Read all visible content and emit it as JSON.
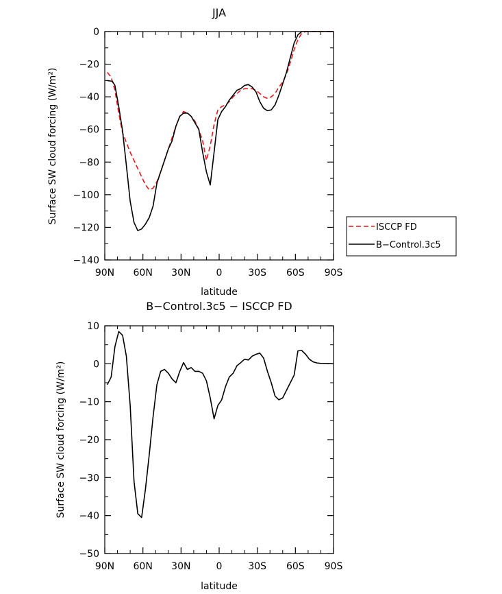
{
  "chart_data": [
    {
      "type": "line",
      "title": "JJA",
      "xlabel": "latitude",
      "ylabel": "Surface SW cloud forcing (W/m²)",
      "xlim": [
        90,
        -90
      ],
      "ylim": [
        -140,
        0
      ],
      "x_ticks": [
        90,
        60,
        30,
        0,
        -30,
        -60,
        -90
      ],
      "x_tick_labels": [
        "90N",
        "60N",
        "30N",
        "0",
        "30S",
        "60S",
        "90S"
      ],
      "y_ticks": [
        0,
        -20,
        -40,
        -60,
        -80,
        -100,
        -120,
        -140
      ],
      "y_tick_labels": [
        "0",
        "−20",
        "−40",
        "−60",
        "−80",
        "−100",
        "−120",
        "−140"
      ],
      "legend": {
        "placement": "right",
        "entries": [
          "ISCCP FD",
          "B−Control.3c5"
        ]
      },
      "series": [
        {
          "name": "ISCCP FD",
          "color": "#e41a1c",
          "dash": "dashed",
          "points": [
            [
              88,
              -25
            ],
            [
              85,
              -28
            ],
            [
              82,
              -36
            ],
            [
              79,
              -50
            ],
            [
              76,
              -62
            ],
            [
              73,
              -68
            ],
            [
              70,
              -74
            ],
            [
              67,
              -79
            ],
            [
              64,
              -84
            ],
            [
              61,
              -89
            ],
            [
              58,
              -94
            ],
            [
              55,
              -97
            ],
            [
              52,
              -96
            ],
            [
              49,
              -92
            ],
            [
              46,
              -86
            ],
            [
              43,
              -79
            ],
            [
              40,
              -72
            ],
            [
              37,
              -65
            ],
            [
              34,
              -58
            ],
            [
              31,
              -52
            ],
            [
              28,
              -49
            ],
            [
              25,
              -50
            ],
            [
              22,
              -52
            ],
            [
              19,
              -55
            ],
            [
              16,
              -60
            ],
            [
              13,
              -67
            ],
            [
              10,
              -79
            ],
            [
              7,
              -70
            ],
            [
              4,
              -57
            ],
            [
              1,
              -48
            ],
            [
              -2,
              -46
            ],
            [
              -5,
              -45
            ],
            [
              -8,
              -43
            ],
            [
              -11,
              -40
            ],
            [
              -14,
              -38
            ],
            [
              -17,
              -36
            ],
            [
              -20,
              -35
            ],
            [
              -23,
              -35
            ],
            [
              -26,
              -35
            ],
            [
              -29,
              -36
            ],
            [
              -32,
              -38
            ],
            [
              -35,
              -40
            ],
            [
              -38,
              -41
            ],
            [
              -41,
              -40
            ],
            [
              -44,
              -38
            ],
            [
              -47,
              -34
            ],
            [
              -50,
              -31
            ],
            [
              -53,
              -26
            ],
            [
              -56,
              -19
            ],
            [
              -59,
              -11
            ],
            [
              -62,
              -5
            ],
            [
              -65,
              -1
            ],
            [
              -68,
              0
            ],
            [
              -75,
              0
            ],
            [
              -90,
              0
            ]
          ]
        },
        {
          "name": "B−Control.3c5",
          "color": "#000000",
          "dash": "solid",
          "points": [
            [
              88,
              -30
            ],
            [
              84,
              -30.5
            ],
            [
              82,
              -33
            ],
            [
              79,
              -46
            ],
            [
              76,
              -61
            ],
            [
              73,
              -82
            ],
            [
              70,
              -104
            ],
            [
              67,
              -117
            ],
            [
              64,
              -122
            ],
            [
              61,
              -121
            ],
            [
              58,
              -118
            ],
            [
              55,
              -114
            ],
            [
              52,
              -107
            ],
            [
              49,
              -93
            ],
            [
              46,
              -86
            ],
            [
              43,
              -79
            ],
            [
              40,
              -72
            ],
            [
              37,
              -67
            ],
            [
              34,
              -58
            ],
            [
              31,
              -52
            ],
            [
              28,
              -50
            ],
            [
              25,
              -50
            ],
            [
              22,
              -52
            ],
            [
              19,
              -56
            ],
            [
              16,
              -60
            ],
            [
              13,
              -74
            ],
            [
              10,
              -86
            ],
            [
              7,
              -94
            ],
            [
              4,
              -74
            ],
            [
              1,
              -54
            ],
            [
              -2,
              -49
            ],
            [
              -5,
              -46
            ],
            [
              -8,
              -42
            ],
            [
              -11,
              -39
            ],
            [
              -14,
              -36
            ],
            [
              -17,
              -35
            ],
            [
              -20,
              -33
            ],
            [
              -23,
              -32.5
            ],
            [
              -26,
              -34
            ],
            [
              -29,
              -37
            ],
            [
              -32,
              -43
            ],
            [
              -35,
              -47
            ],
            [
              -38,
              -48.5
            ],
            [
              -41,
              -48
            ],
            [
              -44,
              -45
            ],
            [
              -47,
              -39
            ],
            [
              -50,
              -32
            ],
            [
              -53,
              -25
            ],
            [
              -56,
              -16
            ],
            [
              -59,
              -7
            ],
            [
              -62,
              -2
            ],
            [
              -65,
              0
            ],
            [
              -68,
              0
            ],
            [
              -75,
              0
            ],
            [
              -90,
              0
            ]
          ]
        }
      ]
    },
    {
      "type": "line",
      "title": "B−Control.3c5 − ISCCP FD",
      "xlabel": "latitude",
      "ylabel": "Surface SW cloud forcing (W/m²)",
      "xlim": [
        90,
        -90
      ],
      "ylim": [
        -50,
        10
      ],
      "x_ticks": [
        90,
        60,
        30,
        0,
        -30,
        -60,
        -90
      ],
      "x_tick_labels": [
        "90N",
        "60N",
        "30N",
        "0",
        "30S",
        "60S",
        "90S"
      ],
      "y_ticks": [
        10,
        0,
        -10,
        -20,
        -30,
        -40,
        -50
      ],
      "y_tick_labels": [
        "10",
        "0",
        "−10",
        "−20",
        "−30",
        "−40",
        "−50"
      ],
      "series": [
        {
          "color": "#000000",
          "dash": "solid",
          "points": [
            [
              88,
              -5.5
            ],
            [
              85,
              -3.5
            ],
            [
              82,
              4.5
            ],
            [
              79,
              8.5
            ],
            [
              76,
              7.5
            ],
            [
              73,
              2
            ],
            [
              70,
              -11
            ],
            [
              67,
              -31
            ],
            [
              64,
              -39.5
            ],
            [
              61,
              -40.5
            ],
            [
              58,
              -33
            ],
            [
              55,
              -24
            ],
            [
              52,
              -14
            ],
            [
              49,
              -5.5
            ],
            [
              46,
              -2
            ],
            [
              43,
              -1.5
            ],
            [
              40,
              -2.5
            ],
            [
              37,
              -4
            ],
            [
              34,
              -5
            ],
            [
              31,
              -2
            ],
            [
              28,
              0.3
            ],
            [
              25,
              -1.5
            ],
            [
              22,
              -1
            ],
            [
              19,
              -2
            ],
            [
              16,
              -2
            ],
            [
              13,
              -2.5
            ],
            [
              10,
              -4.5
            ],
            [
              7,
              -9
            ],
            [
              4,
              -14.5
            ],
            [
              1,
              -11
            ],
            [
              -2,
              -9.5
            ],
            [
              -5,
              -6
            ],
            [
              -8,
              -3.5
            ],
            [
              -11,
              -2.5
            ],
            [
              -14,
              -0.5
            ],
            [
              -17,
              0.3
            ],
            [
              -20,
              1.2
            ],
            [
              -23,
              1
            ],
            [
              -26,
              2
            ],
            [
              -29,
              2.5
            ],
            [
              -32,
              2.8
            ],
            [
              -35,
              1.5
            ],
            [
              -38,
              -2
            ],
            [
              -41,
              -5
            ],
            [
              -44,
              -8.5
            ],
            [
              -47,
              -9.5
            ],
            [
              -50,
              -9
            ],
            [
              -53,
              -7
            ],
            [
              -56,
              -5
            ],
            [
              -59,
              -3
            ],
            [
              -62,
              3.4
            ],
            [
              -65,
              3.5
            ],
            [
              -68,
              2.5
            ],
            [
              -71,
              1.2
            ],
            [
              -74,
              0.5
            ],
            [
              -77,
              0.2
            ],
            [
              -80,
              0.1
            ],
            [
              -90,
              0
            ]
          ]
        }
      ]
    }
  ]
}
